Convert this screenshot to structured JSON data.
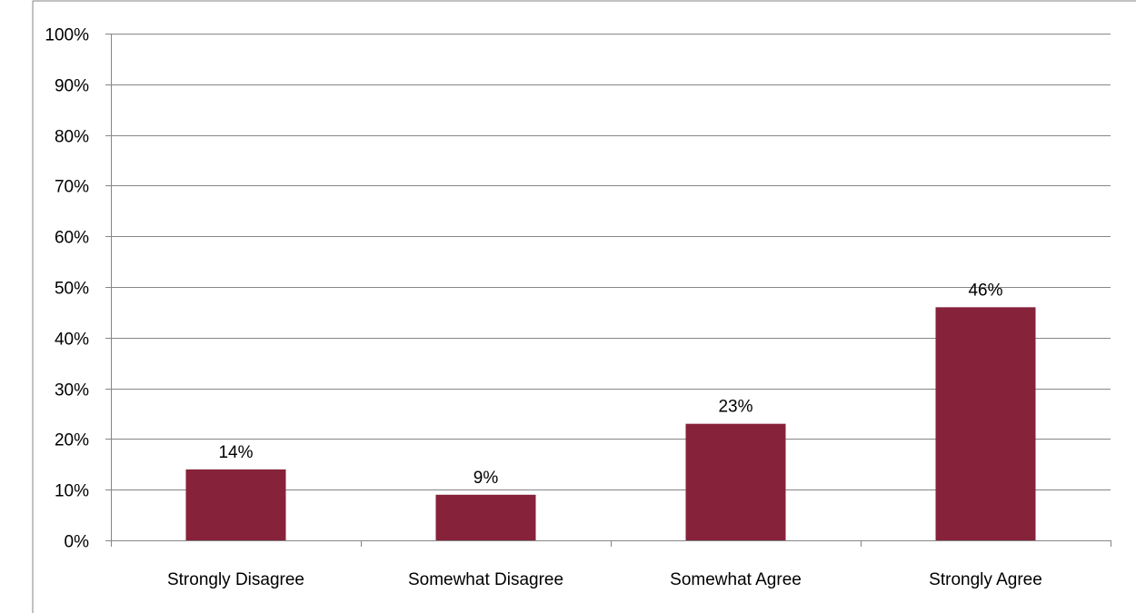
{
  "chart_data": {
    "type": "bar",
    "categories": [
      "Strongly Disagree",
      "Somewhat Disagree",
      "Somewhat Agree",
      "Strongly Agree"
    ],
    "values": [
      14,
      9,
      23,
      46
    ],
    "data_labels": [
      "14%",
      "9%",
      "23%",
      "46%"
    ],
    "title": "",
    "xlabel": "",
    "ylabel": "",
    "ylim": [
      0,
      100
    ],
    "y_ticks": [
      0,
      10,
      20,
      30,
      40,
      50,
      60,
      70,
      80,
      90,
      100
    ],
    "y_tick_labels": [
      "0%",
      "10%",
      "20%",
      "30%",
      "40%",
      "50%",
      "60%",
      "70%",
      "80%",
      "90%",
      "100%"
    ],
    "grid": true,
    "legend": "none",
    "bar_color": "#86223A",
    "gridline_color": "#868686"
  }
}
